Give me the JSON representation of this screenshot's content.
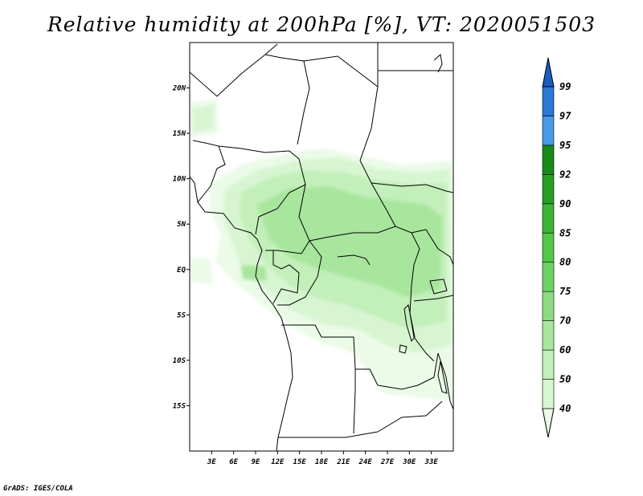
{
  "title": "Relative humidity at 200hPa [%], VT: 2020051503",
  "credit": "GrADS: IGES/COLA",
  "map": {
    "lon_range": [
      0,
      36
    ],
    "lat_range": [
      -20,
      25
    ],
    "lat_ticks": [
      {
        "value": 20,
        "label": "20N"
      },
      {
        "value": 15,
        "label": "15N"
      },
      {
        "value": 10,
        "label": "10N"
      },
      {
        "value": 5,
        "label": "5N"
      },
      {
        "value": 0,
        "label": "EQ"
      },
      {
        "value": -5,
        "label": "5S"
      },
      {
        "value": -10,
        "label": "10S"
      },
      {
        "value": -15,
        "label": "15S"
      }
    ],
    "lon_ticks": [
      {
        "value": 3,
        "label": "3E"
      },
      {
        "value": 6,
        "label": "6E"
      },
      {
        "value": 9,
        "label": "9E"
      },
      {
        "value": 12,
        "label": "12E"
      },
      {
        "value": 15,
        "label": "15E"
      },
      {
        "value": 18,
        "label": "18E"
      },
      {
        "value": 21,
        "label": "21E"
      },
      {
        "value": 24,
        "label": "24E"
      },
      {
        "value": 27,
        "label": "27E"
      },
      {
        "value": 30,
        "label": "30E"
      },
      {
        "value": 33,
        "label": "33E"
      }
    ]
  },
  "colorbar": {
    "bins": [
      {
        "color": "#ebfbe8"
      },
      {
        "color": "#d8f5d2"
      },
      {
        "color": "#c2efba"
      },
      {
        "color": "#a8e69e"
      },
      {
        "color": "#8cdb80"
      },
      {
        "color": "#6fd164"
      },
      {
        "color": "#52c749"
      },
      {
        "color": "#3cb536"
      },
      {
        "color": "#289e25"
      },
      {
        "color": "#188a18"
      },
      {
        "color": "#4899e6"
      },
      {
        "color": "#2a78d8"
      },
      {
        "color": "#1a5cc4"
      }
    ],
    "labels": [
      "40",
      "50",
      "60",
      "70",
      "75",
      "80",
      "85",
      "90",
      "92",
      "95",
      "97",
      "99"
    ]
  }
}
